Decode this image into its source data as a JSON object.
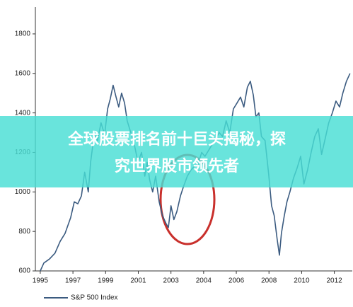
{
  "chart_data": {
    "type": "line",
    "xlim": [
      -1.5,
      95.5
    ],
    "ylim": [
      600,
      1900
    ],
    "xticks": [
      {
        "value": 0,
        "label": "1995"
      },
      {
        "value": 10,
        "label": "1997"
      },
      {
        "value": 20,
        "label": "1999"
      },
      {
        "value": 30,
        "label": "2001"
      },
      {
        "value": 40,
        "label": "2003"
      },
      {
        "value": 50,
        "label": "2004"
      },
      {
        "value": 60,
        "label": "2006"
      },
      {
        "value": 70,
        "label": "2008"
      },
      {
        "value": 80,
        "label": "2010"
      },
      {
        "value": 90,
        "label": "2012"
      }
    ],
    "yticks": [
      600,
      800,
      1000,
      1200,
      1400,
      1600,
      1800
    ],
    "series": [
      {
        "name": "S&P 500 Index",
        "color": "#3b5b80",
        "x": [
          0,
          1.1,
          2.8,
          4.5,
          6.1,
          7.6,
          9.3,
          10.4,
          11.5,
          12.6,
          13.6,
          14.7,
          15.4,
          16.5,
          17.5,
          18.6,
          19.7,
          20.6,
          21.4,
          22.3,
          23.2,
          24.0,
          24.9,
          25.8,
          26.6,
          27.7,
          28.8,
          29.9,
          31.0,
          32.0,
          32.7,
          33.5,
          34.4,
          35.3,
          36.4,
          37.4,
          38.5,
          39.2,
          40.0,
          40.9,
          41.8,
          42.9,
          43.9,
          45.0,
          46.1,
          47.2,
          48.3,
          49.4,
          50.4,
          51.5,
          52.6,
          53.7,
          54.8,
          55.8,
          56.9,
          58.0,
          59.1,
          60.2,
          61.3,
          62.3,
          63.4,
          64.3,
          65.2,
          66.0,
          66.9,
          67.7,
          68.8,
          69.9,
          70.8,
          71.6,
          72.5,
          73.2,
          73.8,
          74.7,
          75.5,
          76.4,
          77.5,
          78.6,
          79.7,
          80.7,
          81.8,
          82.9,
          84.0,
          85.1,
          86.1,
          87.2,
          88.3,
          89.4,
          90.5,
          91.6,
          92.6,
          93.7,
          94.8
        ],
        "values": [
          600,
          640,
          660,
          690,
          750,
          790,
          870,
          950,
          940,
          980,
          1100,
          1000,
          1150,
          1290,
          1260,
          1350,
          1290,
          1420,
          1470,
          1540,
          1480,
          1430,
          1500,
          1450,
          1360,
          1300,
          1240,
          1150,
          1200,
          1080,
          1150,
          1060,
          1000,
          1080,
          950,
          880,
          840,
          820,
          930,
          860,
          900,
          980,
          1030,
          1080,
          1110,
          1130,
          1140,
          1200,
          1180,
          1210,
          1240,
          1270,
          1300,
          1280,
          1360,
          1300,
          1420,
          1450,
          1480,
          1430,
          1530,
          1560,
          1490,
          1380,
          1400,
          1280,
          1260,
          1090,
          930,
          880,
          760,
          680,
          790,
          880,
          950,
          1000,
          1070,
          1120,
          1180,
          1040,
          1110,
          1200,
          1280,
          1320,
          1190,
          1270,
          1350,
          1400,
          1460,
          1430,
          1500,
          1560,
          1600
        ]
      }
    ],
    "legend": "bottom-left"
  },
  "banner": {
    "lines": [
      "全球股票排名前十巨头揭秘，探",
      "究世界股市领先者"
    ]
  }
}
